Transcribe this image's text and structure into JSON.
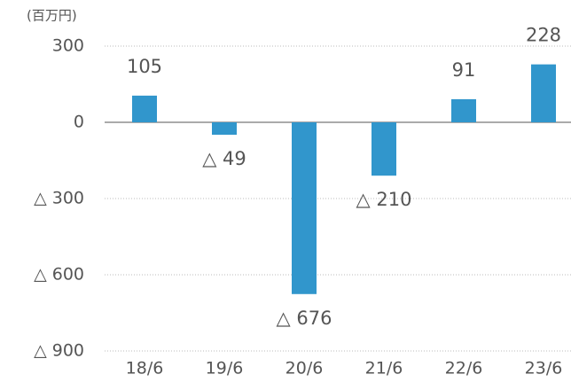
{
  "chart_data": {
    "type": "bar",
    "unit_label": "(百万円)",
    "categories": [
      "18/6",
      "19/6",
      "20/6",
      "21/6",
      "22/6",
      "23/6"
    ],
    "values": [
      105,
      -49,
      -676,
      -210,
      91,
      228
    ],
    "value_labels": [
      "105",
      "△ 49",
      "△ 676",
      "△ 210",
      "91",
      "228"
    ],
    "color": "#3196cc",
    "ylim": [
      -900,
      300
    ],
    "yticks": [
      300,
      0,
      {
        "value": -300,
        "label": "△ 300"
      },
      {
        "value": -600,
        "label": "△ 600"
      },
      {
        "value": -900,
        "label": "△ 900"
      }
    ],
    "grid": true
  }
}
